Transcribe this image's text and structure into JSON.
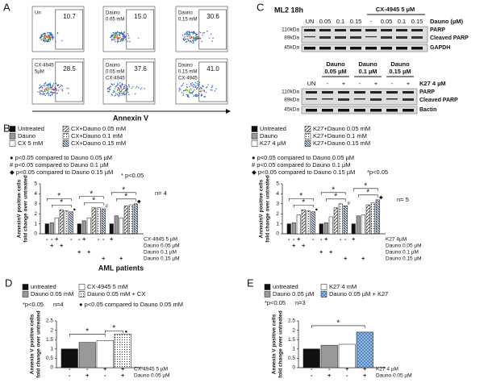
{
  "panel_labels": [
    "A",
    "B",
    "C",
    "D",
    "E"
  ],
  "A": {
    "xlabel": "Annexin V",
    "plots": [
      {
        "label": [
          "Un"
        ],
        "value": "10.7"
      },
      {
        "label": [
          "Dauno",
          "0.05 mM"
        ],
        "value": "15.0"
      },
      {
        "label": [
          "Dauno",
          "0.15 mM"
        ],
        "value": "30.6"
      },
      {
        "label": [
          "CX-4945",
          "5µM"
        ],
        "value": "28.5"
      },
      {
        "label": [
          "Dauno",
          "0.05 mM",
          "CX-4945"
        ],
        "value": "37.6"
      },
      {
        "label": [
          "Dauno",
          "0.15 mM",
          "CX-4945"
        ],
        "value": "41.0"
      }
    ]
  },
  "C": {
    "title": "ML2 18h",
    "top": {
      "treatment": "CX-4945 5 µM",
      "dose_label": "Dauno (µM)",
      "lanes": [
        "UN",
        "0.05",
        "0.1",
        "0.15",
        "-",
        "0.05",
        "0.1",
        "0.15"
      ],
      "markers": [
        "110kDa",
        "89kDa",
        "45kDa"
      ],
      "bands": [
        "PARP",
        "Cleaved PARP",
        "GAPDH"
      ]
    },
    "bottom": {
      "groups": [
        [
          "Dauno",
          "0.05 µM"
        ],
        [
          "Dauno",
          "0.1 µM"
        ],
        [
          "Dauno",
          "0.15 µM"
        ]
      ],
      "treatment": "K27 4 µM",
      "lanes": [
        "UN",
        "-",
        "+",
        "-",
        "+",
        "-",
        "+"
      ],
      "markers": [
        "110kDa",
        "89kDa",
        "45kDa"
      ],
      "bands": [
        "PARP",
        "Cleaved PARP",
        "Bactin"
      ]
    }
  },
  "chart_data": [
    {
      "type": "bar",
      "xlabel": "AML patients",
      "ylabel": [
        "AnnexinV positive cells",
        "fold change over untreated"
      ],
      "categories": [
        null,
        null,
        null
      ],
      "series": [
        {
          "name": "Untreated",
          "color": "#111111",
          "values": [
            1,
            1,
            1
          ]
        },
        {
          "name": "Dauno",
          "color": "#999999",
          "values": [
            1.1,
            1.3,
            1.8
          ]
        },
        {
          "name": "CX 5 mM",
          "color": "#ffffff",
          "values": [
            1.6,
            1.6,
            1.6
          ]
        },
        {
          "name": "CX+Dauno 0.05 mM",
          "color": "#ffffff",
          "pattern": "diag",
          "values": [
            2.4,
            2.6,
            2.8
          ]
        },
        {
          "name": "CX+Dauno 0.1 mM",
          "color": "#ffffff",
          "pattern": "dots",
          "values": [
            2.3,
            2.6,
            2.9
          ]
        },
        {
          "name": "CX+Dauno 0.15 mM",
          "color": "#ffffff",
          "pattern": "back",
          "values": [
            2.2,
            2.5,
            3.0
          ]
        }
      ],
      "ylim": [
        0,
        5
      ],
      "yticks": [
        0,
        1,
        2,
        3,
        4,
        5
      ],
      "notes": [
        "● p<0.05 compared to Dauno 0.05 µM",
        "# p<0.05 compared to Dauno 0.1 µM",
        "◆ p<0.05 compared to Dauno 0.15 µM"
      ],
      "sig_note": "* p<0.05",
      "n": "n= 4",
      "sig": [
        "*",
        "*",
        "*",
        "*",
        "*",
        "*"
      ],
      "bar_symbols": [
        "●",
        "#",
        "◆"
      ],
      "sign_rows": [
        {
          "label": "CX-4945  5 µM",
          "signs": [
            "-",
            "-",
            "+",
            null,
            null,
            "-",
            "-",
            "+",
            null,
            null,
            "-",
            "-",
            "+",
            null,
            null,
            null,
            null,
            null
          ]
        },
        {
          "label": "Dauno 0.05 µM",
          "signs": [
            null,
            "+",
            null,
            "+",
            null,
            null,
            null,
            null,
            null,
            null,
            null,
            null,
            null,
            null,
            null,
            null,
            null,
            null
          ]
        },
        {
          "label": "Dauno 0.1 µM",
          "signs": [
            null,
            null,
            null,
            null,
            null,
            null,
            "+",
            null,
            "+",
            null,
            null,
            null,
            null,
            null,
            null,
            null,
            null,
            null
          ]
        },
        {
          "label": "Dauno 0.15 µM",
          "signs": [
            null,
            null,
            null,
            null,
            null,
            null,
            null,
            null,
            null,
            null,
            null,
            "+",
            null,
            null,
            "+",
            null,
            null,
            null
          ]
        }
      ]
    },
    {
      "type": "bar",
      "ylabel": [
        "AnnexinV positive cells",
        "fold change over untreated"
      ],
      "categories": [
        null,
        null,
        null
      ],
      "series": [
        {
          "name": "Untreated",
          "color": "#111111",
          "values": [
            1,
            1,
            1
          ]
        },
        {
          "name": "Dauno",
          "color": "#999999",
          "values": [
            1.1,
            1.1,
            1.8
          ]
        },
        {
          "name": "K27 4 µM",
          "color": "#ffffff",
          "values": [
            1.9,
            1.7,
            1.9
          ]
        },
        {
          "name": "K27+Dauno 0.05 mM",
          "color": "#ffffff",
          "pattern": "diag",
          "values": [
            2.4,
            2.6,
            2.9
          ]
        },
        {
          "name": "K27+Dauno 0.1 mM",
          "color": "#ffffff",
          "pattern": "dots",
          "values": [
            2.3,
            3.0,
            3.1
          ]
        },
        {
          "name": "K27+Dauno 0.15 mM",
          "color": "#ffffff",
          "pattern": "back",
          "values": [
            2.2,
            2.8,
            3.4
          ]
        }
      ],
      "ylim": [
        0,
        5
      ],
      "yticks": [
        0,
        1,
        2,
        3,
        4,
        5
      ],
      "notes": [
        "● p<0.05 compared to Dauno 0.05 µM",
        "# p<0.05 compared to Dauno 0.1 µM",
        "◆ p<0.05 compared to Dauno 0.15 µM"
      ],
      "sig_note": "*p<0.05",
      "n": "n= 5",
      "sig": [
        "*",
        "*",
        "*",
        "*",
        "*",
        "*"
      ],
      "bar_symbols": [
        "●",
        "#",
        "◆"
      ],
      "sign_rows": [
        {
          "label": "K27 4µM",
          "signs": [
            "-",
            "-",
            "+",
            null,
            null,
            "-",
            "-",
            "+",
            null,
            null,
            "-",
            "-",
            "+",
            null,
            null,
            null,
            null,
            null
          ]
        },
        {
          "label": "Dauno 0.05 µM",
          "signs": [
            null,
            "+",
            null,
            "+",
            null,
            null,
            null,
            null,
            null,
            null,
            null,
            null,
            null,
            null,
            null,
            null,
            null,
            null
          ]
        },
        {
          "label": "Dauno 0.1 µM",
          "signs": [
            null,
            null,
            null,
            null,
            null,
            null,
            "+",
            null,
            "+",
            null,
            null,
            null,
            null,
            null,
            null,
            null,
            null,
            null
          ]
        },
        {
          "label": "Dauno 0.15 µM",
          "signs": [
            null,
            null,
            null,
            null,
            null,
            null,
            null,
            null,
            null,
            null,
            null,
            "+",
            null,
            null,
            "+",
            null,
            null,
            null
          ]
        }
      ]
    },
    {
      "type": "bar",
      "ylabel": [
        "Annexin V positive cells",
        "fold change over untreated"
      ],
      "categories": [
        null
      ],
      "series": [
        {
          "name": "untreated",
          "color": "#111111",
          "values": [
            1
          ]
        },
        {
          "name": "Dauno 0.05 mM",
          "color": "#999999",
          "values": [
            1.35
          ]
        },
        {
          "name": "CX-4945 5 mM",
          "color": "#ffffff",
          "values": [
            1.45
          ]
        },
        {
          "name": "Dauno 0.05 mM + CX",
          "color": "#bbbbbb",
          "pattern": "dots",
          "values": [
            1.8
          ]
        }
      ],
      "ylim": [
        0,
        2.5
      ],
      "yticks": [
        0,
        0.5,
        1,
        1.5,
        2,
        2.5
      ],
      "notes": [
        "● p<0.05 compared to  Dauno 0.05 mM"
      ],
      "sig_note": "*p<0.05",
      "n": "n=4",
      "sig": [
        "*",
        "*"
      ],
      "bar_symbols": [
        "●"
      ],
      "sign_rows": [
        {
          "label": "CX-4945  5 µM",
          "signs": [
            "-",
            "-",
            "+",
            "+"
          ]
        },
        {
          "label": "Dauno 0.05 µM",
          "signs": [
            "-",
            "+",
            "-",
            "+"
          ]
        }
      ]
    },
    {
      "type": "bar",
      "ylabel": [
        "Annexin V positive cells",
        "fold change over untreated"
      ],
      "categories": [
        null
      ],
      "series": [
        {
          "name": "untreated",
          "color": "#111111",
          "values": [
            1
          ]
        },
        {
          "name": "Dauno 0.05 µM",
          "color": "#999999",
          "values": [
            1.2
          ]
        },
        {
          "name": "K27 4 mM",
          "color": "#ffffff",
          "values": [
            1.25
          ]
        },
        {
          "name": "Dauno 0.05 µM + K27",
          "color": "#9ec3e6",
          "pattern": "grid",
          "values": [
            1.9
          ]
        }
      ],
      "ylim": [
        0,
        2.5
      ],
      "yticks": [
        0,
        0.5,
        1,
        1.5,
        2,
        2.5
      ],
      "notes": [],
      "sig_note": "*p<0.05",
      "n": "n=3",
      "sig": [
        "*"
      ],
      "bar_symbols": [],
      "sign_rows": [
        {
          "label": "K27 4 µM",
          "signs": [
            "-",
            "-",
            "+",
            "+"
          ]
        },
        {
          "label": "Dauno 0.05 µM",
          "signs": [
            "-",
            "+",
            "-",
            "+"
          ]
        }
      ]
    }
  ]
}
